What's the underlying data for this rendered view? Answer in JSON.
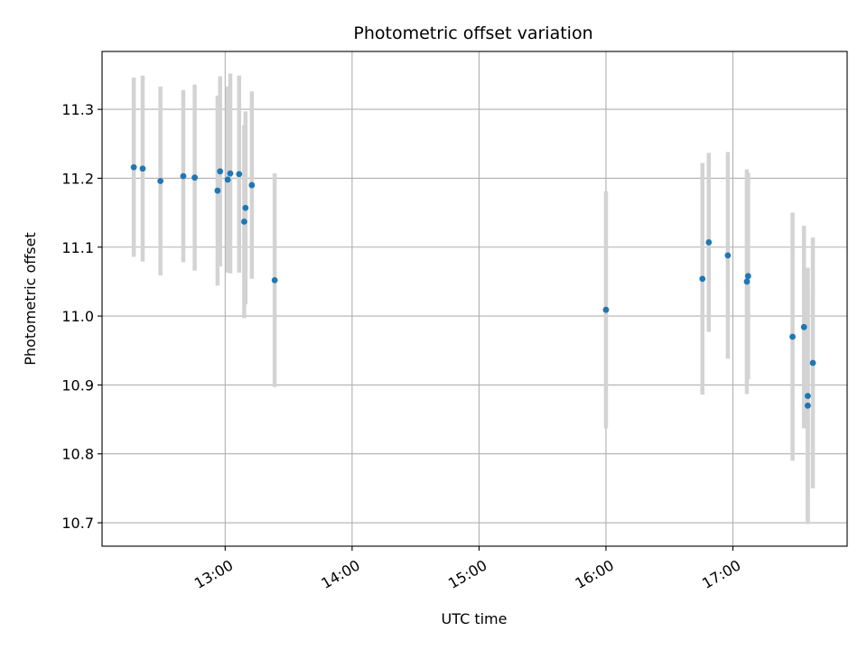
{
  "chart_data": {
    "type": "scatter",
    "title": "Photometric offset variation",
    "xlabel": "UTC time",
    "ylabel": "Photometric offset",
    "x_unit": "hours UTC",
    "xlim": [
      12.03,
      17.9
    ],
    "ylim": [
      10.666,
      11.384
    ],
    "grid": true,
    "x_ticks": [
      {
        "value": 13,
        "label": "13:00"
      },
      {
        "value": 14,
        "label": "14:00"
      },
      {
        "value": 15,
        "label": "15:00"
      },
      {
        "value": 16,
        "label": "16:00"
      },
      {
        "value": 17,
        "label": "17:00"
      }
    ],
    "y_ticks": [
      {
        "value": 10.7,
        "label": "10.7"
      },
      {
        "value": 10.8,
        "label": "10.8"
      },
      {
        "value": 10.9,
        "label": "10.9"
      },
      {
        "value": 11.0,
        "label": "11.0"
      },
      {
        "value": 11.1,
        "label": "11.1"
      },
      {
        "value": 11.2,
        "label": "11.2"
      },
      {
        "value": 11.3,
        "label": "11.3"
      }
    ],
    "point_color": "#1f77b4",
    "errorbar_color": "#d3d3d3",
    "points": [
      {
        "x": 12.28,
        "y": 11.216,
        "err": 0.13
      },
      {
        "x": 12.35,
        "y": 11.214,
        "err": 0.135
      },
      {
        "x": 12.49,
        "y": 11.196,
        "err": 0.137
      },
      {
        "x": 12.67,
        "y": 11.203,
        "err": 0.125
      },
      {
        "x": 12.76,
        "y": 11.201,
        "err": 0.135
      },
      {
        "x": 12.94,
        "y": 11.182,
        "err": 0.138
      },
      {
        "x": 12.96,
        "y": 11.21,
        "err": 0.138
      },
      {
        "x": 13.02,
        "y": 11.198,
        "err": 0.135
      },
      {
        "x": 13.04,
        "y": 11.207,
        "err": 0.145
      },
      {
        "x": 13.11,
        "y": 11.206,
        "err": 0.143
      },
      {
        "x": 13.15,
        "y": 11.137,
        "err": 0.14
      },
      {
        "x": 13.16,
        "y": 11.157,
        "err": 0.14
      },
      {
        "x": 13.21,
        "y": 11.19,
        "err": 0.136
      },
      {
        "x": 13.39,
        "y": 11.052,
        "err": 0.155
      },
      {
        "x": 16.0,
        "y": 11.009,
        "err": 0.172
      },
      {
        "x": 16.76,
        "y": 11.054,
        "err": 0.168
      },
      {
        "x": 16.81,
        "y": 11.107,
        "err": 0.13
      },
      {
        "x": 16.96,
        "y": 11.088,
        "err": 0.15
      },
      {
        "x": 17.11,
        "y": 11.05,
        "err": 0.163
      },
      {
        "x": 17.12,
        "y": 11.058,
        "err": 0.15
      },
      {
        "x": 17.47,
        "y": 10.97,
        "err": 0.18
      },
      {
        "x": 17.56,
        "y": 10.984,
        "err": 0.147
      },
      {
        "x": 17.59,
        "y": 10.884,
        "err": 0.186
      },
      {
        "x": 17.59,
        "y": 10.87,
        "err": 0.17
      },
      {
        "x": 17.63,
        "y": 10.932,
        "err": 0.182
      }
    ]
  }
}
